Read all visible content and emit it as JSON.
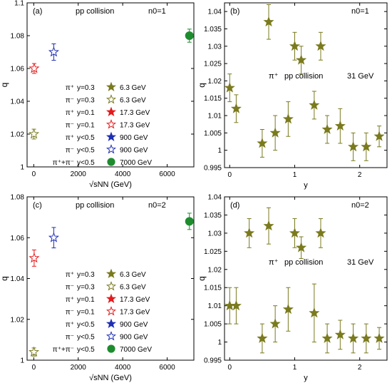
{
  "colors": {
    "olive": "#7a7a1e",
    "red": "#e41a1c",
    "blue": "#1f2fb5",
    "green": "#1e8c2e"
  },
  "chart_data": [
    {
      "type": "scatter",
      "panel_label": "(a)",
      "annotations": [
        "pp collision",
        "n0=1"
      ],
      "xlabel": "√sNN (GeV)",
      "ylabel": "q",
      "xlim": [
        -300,
        7200
      ],
      "ylim": [
        1.0,
        1.1
      ],
      "xticks": [
        0,
        2000,
        4000,
        6000
      ],
      "xtick_labels": [
        "0",
        "2000",
        "4000",
        "6000"
      ],
      "yticks": [
        1.0,
        1.02,
        1.04,
        1.06,
        1.08,
        1.1
      ],
      "ytick_labels": [
        "1",
        "1.02",
        "1.04",
        "1.06",
        "1.08",
        "1.1"
      ],
      "series": [
        {
          "name": "π⁺ y=0.3 6.3 GeV",
          "marker": "star-filled",
          "color": "olive",
          "points": []
        },
        {
          "name": "π⁻ y=0.3 6.3 GeV",
          "marker": "star-open",
          "color": "olive",
          "points": [
            {
              "x": 6.3,
              "y": 1.02,
              "err": 0.003
            }
          ]
        },
        {
          "name": "π⁺ y=0.1 17.3 GeV",
          "marker": "star-filled",
          "color": "red",
          "points": []
        },
        {
          "name": "π⁻ y=0.1 17.3 GeV",
          "marker": "star-open",
          "color": "red",
          "points": [
            {
              "x": 17.3,
              "y": 1.06,
              "err": 0.003
            }
          ]
        },
        {
          "name": "π⁺ y<0.5 900 GeV",
          "marker": "star-filled",
          "color": "blue",
          "points": []
        },
        {
          "name": "π⁻ y<0.5 900 GeV",
          "marker": "star-open",
          "color": "blue",
          "points": [
            {
              "x": 900,
              "y": 1.07,
              "err": 0.005
            }
          ]
        },
        {
          "name": "π⁺+π⁻ y<0.5 7000 GeV",
          "marker": "circle",
          "color": "green",
          "points": [
            {
              "x": 7000,
              "y": 1.08,
              "err": 0.004
            }
          ]
        }
      ]
    },
    {
      "type": "scatter",
      "panel_label": "(b)",
      "annotations": [
        "n0=1",
        "π⁺",
        "pp collision",
        "31 GeV"
      ],
      "xlabel": "y",
      "ylabel": "q",
      "xlim": [
        -0.08,
        2.42
      ],
      "ylim": [
        0.995,
        1.0425
      ],
      "xticks": [
        0,
        1,
        2
      ],
      "xtick_labels": [
        "0",
        "1",
        "2"
      ],
      "yticks": [
        0.995,
        1.0,
        1.005,
        1.01,
        1.015,
        1.02,
        1.025,
        1.03,
        1.035,
        1.04
      ],
      "ytick_labels": [
        "0.995",
        "1",
        "1.005",
        "1.01",
        "1.015",
        "1.02",
        "1.025",
        "1.03",
        "1.035",
        "1.04"
      ],
      "series": [
        {
          "name": "π⁺ 31 GeV",
          "marker": "star-filled",
          "color": "olive",
          "points": [
            {
              "x": 0.0,
              "y": 1.018,
              "err": 0.004
            },
            {
              "x": 0.1,
              "y": 1.012,
              "err": 0.004
            },
            {
              "x": 0.5,
              "y": 1.002,
              "err": 0.004
            },
            {
              "x": 0.6,
              "y": 1.037,
              "err": 0.005
            },
            {
              "x": 0.7,
              "y": 1.005,
              "err": 0.005
            },
            {
              "x": 0.9,
              "y": 1.009,
              "err": 0.005
            },
            {
              "x": 1.0,
              "y": 1.03,
              "err": 0.004
            },
            {
              "x": 1.1,
              "y": 1.026,
              "err": 0.004
            },
            {
              "x": 1.3,
              "y": 1.013,
              "err": 0.004
            },
            {
              "x": 1.4,
              "y": 1.03,
              "err": 0.004
            },
            {
              "x": 1.5,
              "y": 1.006,
              "err": 0.004
            },
            {
              "x": 1.7,
              "y": 1.007,
              "err": 0.005
            },
            {
              "x": 1.9,
              "y": 1.001,
              "err": 0.004
            },
            {
              "x": 2.1,
              "y": 1.001,
              "err": 0.004
            },
            {
              "x": 2.3,
              "y": 1.004,
              "err": 0.003
            }
          ]
        }
      ]
    },
    {
      "type": "scatter",
      "panel_label": "(c)",
      "annotations": [
        "pp collision",
        "n0=2"
      ],
      "xlabel": "√sNN (GeV)",
      "ylabel": "q",
      "xlim": [
        -300,
        7200
      ],
      "ylim": [
        1.0,
        1.08
      ],
      "xticks": [
        0,
        2000,
        4000,
        6000
      ],
      "xtick_labels": [
        "0",
        "2000",
        "4000",
        "6000"
      ],
      "yticks": [
        1.0,
        1.02,
        1.04,
        1.06,
        1.08
      ],
      "ytick_labels": [
        "1",
        "1.02",
        "1.04",
        "1.06",
        "1.08"
      ],
      "series": [
        {
          "name": "π⁺ y=0.3 6.3 GeV",
          "marker": "star-filled",
          "color": "olive",
          "points": []
        },
        {
          "name": "π⁻ y=0.3 6.3 GeV",
          "marker": "star-open",
          "color": "olive",
          "points": [
            {
              "x": 6.3,
              "y": 1.004,
              "err": 0.002
            }
          ]
        },
        {
          "name": "π⁺ y=0.1 17.3 GeV",
          "marker": "star-filled",
          "color": "red",
          "points": []
        },
        {
          "name": "π⁻ y=0.1 17.3 GeV",
          "marker": "star-open",
          "color": "red",
          "points": [
            {
              "x": 17.3,
              "y": 1.05,
              "err": 0.004
            }
          ]
        },
        {
          "name": "π⁺ y<0.5 900 GeV",
          "marker": "star-filled",
          "color": "blue",
          "points": []
        },
        {
          "name": "π⁻ y<0.5 900 GeV",
          "marker": "star-open",
          "color": "blue",
          "points": [
            {
              "x": 900,
              "y": 1.06,
              "err": 0.005
            }
          ]
        },
        {
          "name": "π⁺+π⁻ y<0.5 7000 GeV",
          "marker": "circle",
          "color": "green",
          "points": [
            {
              "x": 7000,
              "y": 1.068,
              "err": 0.004
            }
          ]
        }
      ]
    },
    {
      "type": "scatter",
      "panel_label": "(d)",
      "annotations": [
        "n0=2",
        "π⁺",
        "pp collision",
        "31 GeV"
      ],
      "xlabel": "y",
      "ylabel": "q",
      "xlim": [
        -0.08,
        2.42
      ],
      "ylim": [
        0.995,
        1.04
      ],
      "xticks": [
        0,
        1,
        2
      ],
      "xtick_labels": [
        "0",
        "1",
        "2"
      ],
      "yticks": [
        0.995,
        1.0,
        1.005,
        1.01,
        1.015,
        1.02,
        1.025,
        1.03,
        1.035,
        1.04
      ],
      "ytick_labels": [
        "0.995",
        "1",
        "1.005",
        "1.01",
        "1.015",
        "1.02",
        "1.025",
        "1.03",
        "1.035",
        "1.04"
      ],
      "series": [
        {
          "name": "π⁺ 31 GeV",
          "marker": "star-filled",
          "color": "olive",
          "points": [
            {
              "x": 0.0,
              "y": 1.01,
              "err": 0.005
            },
            {
              "x": 0.1,
              "y": 1.01,
              "err": 0.005
            },
            {
              "x": 0.3,
              "y": 1.03,
              "err": 0.004
            },
            {
              "x": 0.5,
              "y": 1.001,
              "err": 0.004
            },
            {
              "x": 0.6,
              "y": 1.032,
              "err": 0.005
            },
            {
              "x": 0.7,
              "y": 1.005,
              "err": 0.005
            },
            {
              "x": 0.9,
              "y": 1.009,
              "err": 0.006
            },
            {
              "x": 1.0,
              "y": 1.03,
              "err": 0.004
            },
            {
              "x": 1.1,
              "y": 1.026,
              "err": 0.003
            },
            {
              "x": 1.3,
              "y": 1.008,
              "err": 0.008
            },
            {
              "x": 1.4,
              "y": 1.03,
              "err": 0.004
            },
            {
              "x": 1.5,
              "y": 1.001,
              "err": 0.004
            },
            {
              "x": 1.7,
              "y": 1.002,
              "err": 0.004
            },
            {
              "x": 1.9,
              "y": 1.001,
              "err": 0.004
            },
            {
              "x": 2.1,
              "y": 1.001,
              "err": 0.004
            },
            {
              "x": 2.3,
              "y": 1.001,
              "err": 0.003
            }
          ]
        }
      ]
    }
  ]
}
